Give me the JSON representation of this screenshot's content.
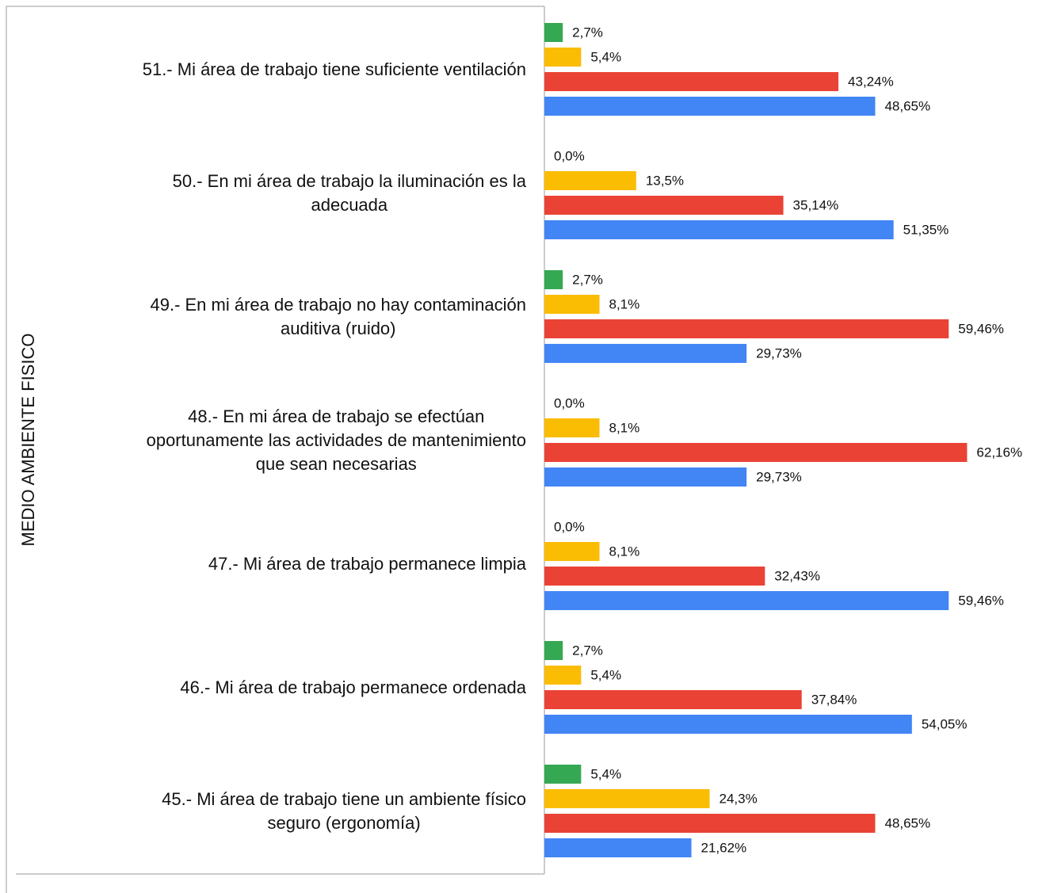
{
  "chart_data": {
    "type": "hbar",
    "y_axis_label": "MEDIO AMBIENTE FISICO",
    "categories": [
      "51.- Mi área de trabajo tiene suficiente ventilación",
      "50.- En mi área de trabajo la iluminación es la\nadecuada",
      "49.- En mi área de trabajo no hay contaminación\nauditiva (ruido)",
      "48.- En mi área de trabajo se efectúan\noportunamente las actividades de mantenimiento\nque sean necesarias",
      "47.- Mi área de trabajo permanece limpia",
      "46.- Mi área de trabajo permanece ordenada",
      "45.- Mi área de trabajo tiene un ambiente físico\nseguro (ergonomía)"
    ],
    "series": [
      {
        "color": "#34a853",
        "values": [
          2.7,
          0,
          2.7,
          0,
          0,
          2.7,
          5.4
        ],
        "value_labels": [
          "2,7%",
          "0,0%",
          "2,7%",
          "0,0%",
          "0,0%",
          "2,7%",
          "5,4%"
        ]
      },
      {
        "color": "#fbbc04",
        "values": [
          5.4,
          13.5,
          8.1,
          8.1,
          8.1,
          5.4,
          24.3
        ],
        "value_labels": [
          "5,4%",
          "13,5%",
          "8,1%",
          "8,1%",
          "8,1%",
          "5,4%",
          "24,3%"
        ]
      },
      {
        "color": "#ea4335",
        "values": [
          43.24,
          35.14,
          59.46,
          62.16,
          32.43,
          37.84,
          48.65
        ],
        "value_labels": [
          "43,24%",
          "35,14%",
          "59,46%",
          "62,16%",
          "32,43%",
          "37,84%",
          "48,65%"
        ]
      },
      {
        "color": "#4285f4",
        "values": [
          48.65,
          51.35,
          29.73,
          29.73,
          59.46,
          54.05,
          21.62
        ],
        "value_labels": [
          "48,65%",
          "51,35%",
          "29,73%",
          "29,73%",
          "59,46%",
          "54,05%",
          "21,62%"
        ]
      }
    ],
    "xlim": [
      0,
      72.6
    ]
  }
}
